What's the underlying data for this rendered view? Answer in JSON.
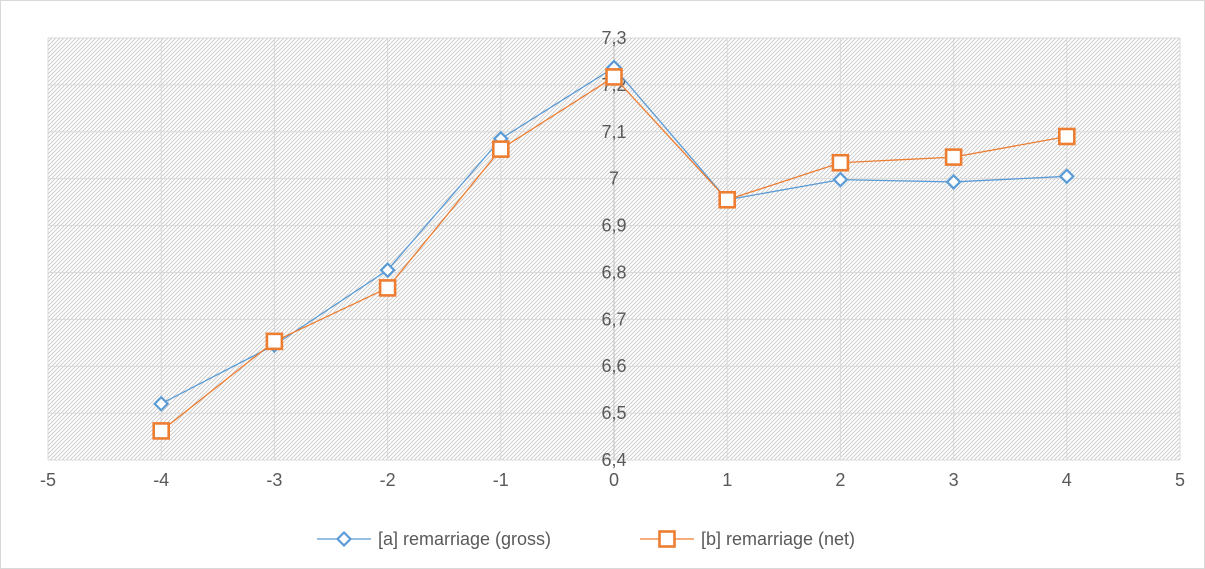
{
  "chart_data": {
    "type": "scatter",
    "title": "",
    "xlabel": "",
    "ylabel": "",
    "xlim": [
      -5,
      5
    ],
    "ylim": [
      6.4,
      7.3
    ],
    "x_ticks": [
      "-5",
      "-4",
      "-3",
      "-2",
      "-1",
      "0",
      "1",
      "2",
      "3",
      "4",
      "5"
    ],
    "y_ticks": [
      "6,4",
      "6,5",
      "6,6",
      "6,7",
      "6,8",
      "6,9",
      "7",
      "7,1",
      "7,2",
      "7,3"
    ],
    "grid": true,
    "legend_position": "bottom",
    "series": [
      {
        "name": "[a] remarriage (gross)",
        "color": "#5b9bd5",
        "marker": "diamond",
        "x": [
          -4,
          -3,
          -2,
          -1,
          0,
          1,
          2,
          3,
          4
        ],
        "y": [
          6.52,
          6.645,
          6.805,
          7.085,
          7.237,
          6.955,
          6.998,
          6.993,
          7.005
        ]
      },
      {
        "name": "[b] remarriage (net)",
        "color": "#ed7d31",
        "marker": "square",
        "x": [
          -4,
          -3,
          -2,
          -1,
          0,
          1,
          2,
          3,
          4
        ],
        "y": [
          6.462,
          6.653,
          6.767,
          7.063,
          7.217,
          6.955,
          7.034,
          7.046,
          7.09
        ]
      }
    ]
  }
}
